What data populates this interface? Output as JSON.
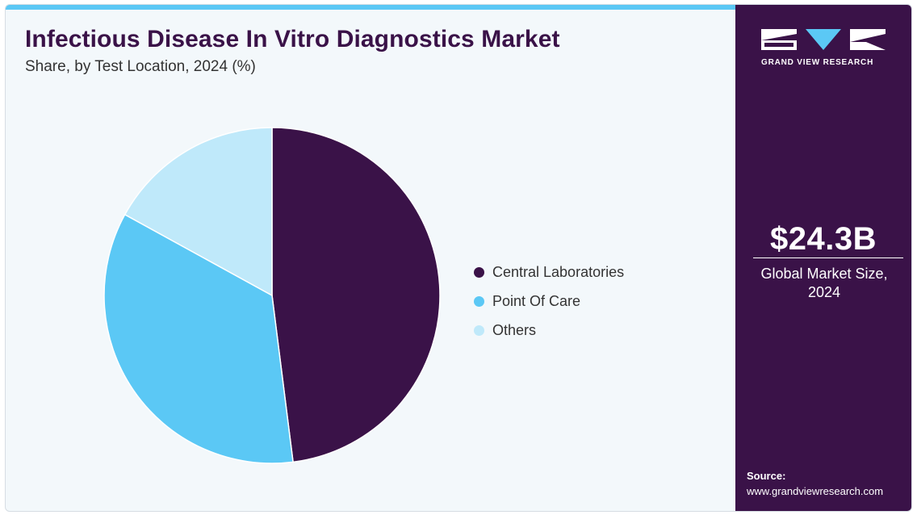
{
  "header": {
    "title": "Infectious Disease In Vitro Diagnostics Market",
    "subtitle": "Share, by Test Location, 2024 (%)"
  },
  "chart_data": {
    "type": "pie",
    "categories": [
      "Central Laboratories",
      "Point Of Care",
      "Others"
    ],
    "values": [
      48,
      35,
      17
    ],
    "colors": [
      "#3a1248",
      "#5bc8f5",
      "#bfe9fa"
    ],
    "legend_position": "right",
    "start_angle": "12 o'clock, clockwise"
  },
  "brand": {
    "logo_text": "GRAND VIEW RESEARCH",
    "accent": "#5bc8f5",
    "panel_color": "#3a1248"
  },
  "stat": {
    "value": "$24.3B",
    "label": "Global Market Size, 2024"
  },
  "source": {
    "label": "Source:",
    "url": "www.grandviewresearch.com"
  }
}
